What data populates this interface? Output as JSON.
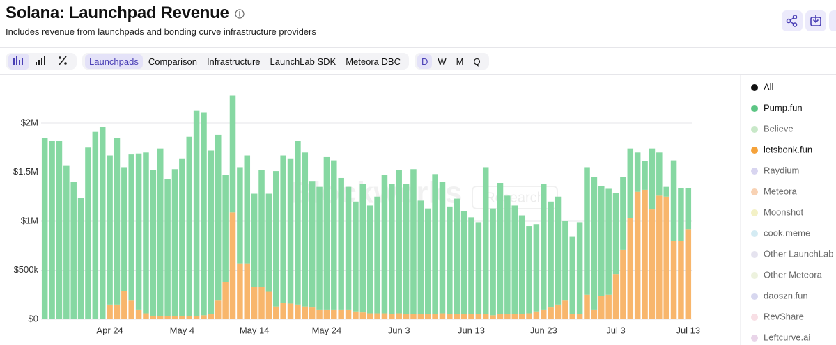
{
  "header": {
    "title": "Solana: Launchpad Revenue",
    "subtitle": "Includes revenue from launchpads and bonding curve infrastructure providers"
  },
  "toolbar": {
    "tabs": [
      "Launchpads",
      "Comparison",
      "Infrastructure",
      "LaunchLab SDK",
      "Meteora DBC"
    ],
    "active_tab": 0,
    "periods": [
      "D",
      "W",
      "M",
      "Q"
    ],
    "active_period": 0
  },
  "watermark": [
    "Blockworks",
    "Research"
  ],
  "chart_data": {
    "type": "stacked_bar",
    "categories": [
      null,
      null,
      null,
      null,
      null,
      null,
      null,
      null,
      null,
      "Apr 24",
      null,
      null,
      null,
      null,
      null,
      null,
      null,
      null,
      null,
      "May 4",
      null,
      null,
      null,
      null,
      null,
      null,
      null,
      null,
      null,
      "May 14",
      null,
      null,
      null,
      null,
      null,
      null,
      null,
      null,
      null,
      "May 24",
      null,
      null,
      null,
      null,
      null,
      null,
      null,
      null,
      null,
      "Jun 3",
      null,
      null,
      null,
      null,
      null,
      null,
      null,
      null,
      null,
      "Jun 13",
      null,
      null,
      null,
      null,
      null,
      null,
      null,
      null,
      null,
      "Jun 23",
      null,
      null,
      null,
      null,
      null,
      null,
      null,
      null,
      null,
      "Jul 3",
      null,
      null,
      null,
      null,
      null,
      null,
      null,
      null,
      null,
      "Jul 13"
    ],
    "series": [
      {
        "name": "letsbonk.fun",
        "color": "#f8b66c",
        "values": [
          0,
          0,
          0,
          0,
          0,
          0,
          0,
          0,
          0,
          150000,
          150000,
          290000,
          190000,
          100000,
          60000,
          30000,
          30000,
          30000,
          30000,
          30000,
          30000,
          30000,
          40000,
          50000,
          190000,
          380000,
          1090000,
          570000,
          570000,
          330000,
          330000,
          280000,
          130000,
          170000,
          160000,
          150000,
          130000,
          120000,
          100000,
          100000,
          100000,
          100000,
          100000,
          80000,
          70000,
          60000,
          60000,
          60000,
          50000,
          60000,
          50000,
          50000,
          50000,
          50000,
          50000,
          60000,
          50000,
          50000,
          50000,
          50000,
          50000,
          50000,
          40000,
          50000,
          50000,
          50000,
          50000,
          60000,
          80000,
          100000,
          120000,
          150000,
          190000,
          50000,
          50000,
          250000,
          100000,
          240000,
          250000,
          460000,
          710000,
          1030000,
          1300000,
          1320000,
          1120000,
          1260000,
          1250000,
          800000,
          800000,
          920000
        ]
      },
      {
        "name": "Pump.fun",
        "color": "#86d8a2",
        "values": [
          1850000,
          1820000,
          1820000,
          1570000,
          1400000,
          1240000,
          1750000,
          1910000,
          1960000,
          1520000,
          1700000,
          1260000,
          1490000,
          1590000,
          1640000,
          1490000,
          1710000,
          1400000,
          1500000,
          1610000,
          1830000,
          2100000,
          2070000,
          1670000,
          1690000,
          1090000,
          1190000,
          980000,
          1100000,
          950000,
          1190000,
          1000000,
          1380000,
          1500000,
          1480000,
          1670000,
          1570000,
          1290000,
          1250000,
          1560000,
          1520000,
          1340000,
          1250000,
          1120000,
          1310000,
          1100000,
          1190000,
          1410000,
          1330000,
          1460000,
          1330000,
          1480000,
          1160000,
          1080000,
          1430000,
          1340000,
          1100000,
          1180000,
          1050000,
          990000,
          940000,
          1500000,
          1090000,
          1340000,
          1210000,
          1110000,
          1010000,
          890000,
          890000,
          1280000,
          1080000,
          1100000,
          810000,
          790000,
          940000,
          1300000,
          1350000,
          1120000,
          1080000,
          830000,
          740000,
          710000,
          400000,
          290000,
          620000,
          440000,
          100000,
          820000,
          540000,
          420000
        ]
      }
    ],
    "ylim": [
      0,
      2400000
    ],
    "yticks": [
      {
        "value": 0,
        "label": "$0"
      },
      {
        "value": 500000,
        "label": "$500k"
      },
      {
        "value": 1000000,
        "label": "$1M"
      },
      {
        "value": 1500000,
        "label": "$1.5M"
      },
      {
        "value": 2000000,
        "label": "$2M"
      }
    ],
    "grid": true,
    "legend_position": "right",
    "legend": [
      {
        "name": "All",
        "color": "#111111",
        "muted": false
      },
      {
        "name": "Pump.fun",
        "color": "#5cc584",
        "muted": false
      },
      {
        "name": "Believe",
        "color": "#c8e8c8",
        "muted": true
      },
      {
        "name": "letsbonk.fun",
        "color": "#f5a23a",
        "muted": false
      },
      {
        "name": "Raydium",
        "color": "#d8d5f0",
        "muted": true
      },
      {
        "name": "Meteora",
        "color": "#f8d2b4",
        "muted": true
      },
      {
        "name": "Moonshot",
        "color": "#f3f1c6",
        "muted": true
      },
      {
        "name": "cook.meme",
        "color": "#d4ebf3",
        "muted": true
      },
      {
        "name": "Other LaunchLab",
        "color": "#e5e3ef",
        "muted": true
      },
      {
        "name": "Other Meteora",
        "color": "#edf2de",
        "muted": true
      },
      {
        "name": "daoszn.fun",
        "color": "#d7d7ef",
        "muted": true
      },
      {
        "name": "RevShare",
        "color": "#f8dfe5",
        "muted": true
      },
      {
        "name": "Leftcurve.ai",
        "color": "#e9d5e9",
        "muted": true
      }
    ]
  }
}
